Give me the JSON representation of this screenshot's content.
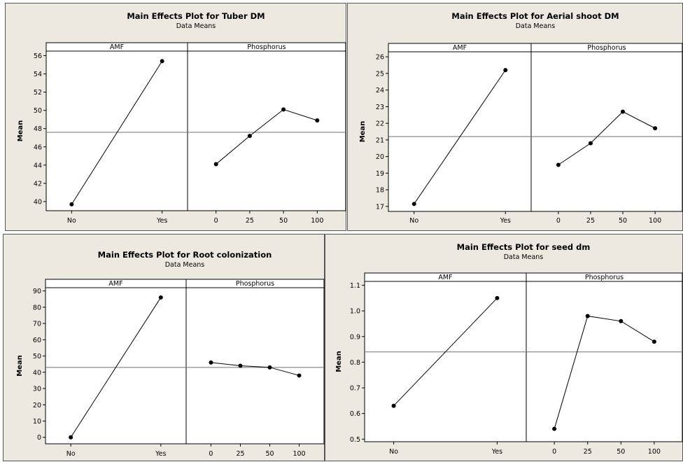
{
  "chart_data": [
    {
      "type": "line",
      "title": "Main Effects Plot for Tuber DM",
      "subtitle": "Data Means",
      "ylabel": "Mean",
      "ylim": [
        39,
        56.5
      ],
      "yticks": [
        40,
        42,
        44,
        46,
        48,
        50,
        52,
        54,
        56
      ],
      "overall_mean": 47.6,
      "facets": [
        {
          "label": "AMF",
          "categories": [
            "No",
            "Yes"
          ],
          "values": [
            39.7,
            55.4
          ]
        },
        {
          "label": "Phosphorus",
          "categories": [
            "0",
            "25",
            "50",
            "100"
          ],
          "values": [
            44.1,
            47.2,
            50.1,
            48.9
          ]
        }
      ]
    },
    {
      "type": "line",
      "title": "Main Effects Plot for Aerial shoot DM",
      "subtitle": "Data Means",
      "ylabel": "Mean",
      "ylim": [
        16.7,
        26.3
      ],
      "yticks": [
        17,
        18,
        19,
        20,
        21,
        22,
        23,
        24,
        25,
        26
      ],
      "overall_mean": 21.2,
      "facets": [
        {
          "label": "AMF",
          "categories": [
            "No",
            "Yes"
          ],
          "values": [
            17.15,
            25.2
          ]
        },
        {
          "label": "Phosphorus",
          "categories": [
            "0",
            "25",
            "50",
            "100"
          ],
          "values": [
            19.5,
            20.8,
            22.7,
            21.7
          ]
        }
      ]
    },
    {
      "type": "line",
      "title": "Main Effects Plot for Root colonization",
      "subtitle": "Data Means",
      "ylabel": "Mean",
      "ylim": [
        -4,
        92
      ],
      "yticks": [
        0,
        10,
        20,
        30,
        40,
        50,
        60,
        70,
        80,
        90
      ],
      "overall_mean": 43,
      "facets": [
        {
          "label": "AMF",
          "categories": [
            "No",
            "Yes"
          ],
          "values": [
            0,
            86
          ]
        },
        {
          "label": "Phosphorus",
          "categories": [
            "0",
            "25",
            "50",
            "100"
          ],
          "values": [
            46,
            44,
            43,
            38
          ]
        }
      ]
    },
    {
      "type": "line",
      "title": "Main Effects Plot for seed dm",
      "subtitle": "Data Means",
      "ylabel": "Mean",
      "ylim": [
        0.49,
        1.115
      ],
      "yticks": [
        "0.5",
        "0.6",
        "0.7",
        "0.8",
        "0.9",
        "1.0",
        "1.1"
      ],
      "overall_mean": 0.84,
      "facets": [
        {
          "label": "AMF",
          "categories": [
            "No",
            "Yes"
          ],
          "values": [
            0.63,
            1.05
          ]
        },
        {
          "label": "Phosphorus",
          "categories": [
            "0",
            "25",
            "50",
            "100"
          ],
          "values": [
            0.54,
            0.98,
            0.96,
            0.88
          ]
        }
      ]
    }
  ],
  "colors": {
    "background": "#ede9e0",
    "plot_area": "#ffffff",
    "line": "#000000",
    "mean_line": "#707070"
  }
}
